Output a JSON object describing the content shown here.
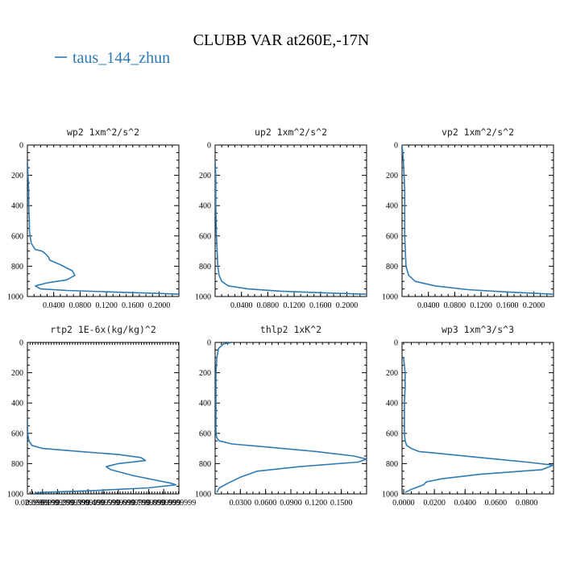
{
  "title": "CLUBB VAR at260E,-17N",
  "legend": {
    "label": "taus_144_zhun",
    "color": "#2e7bb4"
  },
  "colors": {
    "series": "#2e7bb4",
    "axes": "#000000"
  },
  "chart_data": [
    {
      "type": "line",
      "title": "wp2  1xm^2/s^2",
      "xlim": [
        0,
        0.23
      ],
      "ylim": [
        0,
        1000
      ],
      "xticks": [
        "0.0400",
        "0.0800",
        "0.1200",
        "0.1600",
        "0.2000"
      ],
      "xtick_values": [
        0.04,
        0.08,
        0.12,
        0.16,
        0.2
      ],
      "yticks": [
        "0",
        "200",
        "400",
        "600",
        "800",
        "1000"
      ],
      "ytick_values": [
        0,
        200,
        400,
        600,
        800,
        1000
      ],
      "series": [
        {
          "x": [
            0,
            0.001,
            0.002,
            0.002,
            0.003,
            0.003,
            0.004,
            0.006,
            0.012,
            0.022,
            0.028,
            0.032,
            0.034,
            0.05,
            0.068,
            0.072,
            0.06,
            0.03,
            0.012,
            0.02,
            0.06,
            0.13,
            0.2,
            0.23
          ],
          "y": [
            100,
            200,
            300,
            400,
            500,
            560,
            600,
            650,
            690,
            700,
            720,
            740,
            760,
            790,
            830,
            860,
            890,
            910,
            930,
            950,
            960,
            970,
            980,
            985
          ]
        }
      ]
    },
    {
      "type": "line",
      "title": "up2  1xm^2/s^2",
      "xlim": [
        0,
        0.23
      ],
      "ylim": [
        0,
        1000
      ],
      "xticks": [
        "0.0400",
        "0.0800",
        "0.1200",
        "0.1600",
        "0.2000"
      ],
      "xtick_values": [
        0.04,
        0.08,
        0.12,
        0.16,
        0.2
      ],
      "yticks": [
        "0",
        "200",
        "400",
        "600",
        "800",
        "1000"
      ],
      "ytick_values": [
        0,
        200,
        400,
        600,
        800,
        1000
      ],
      "series": [
        {
          "x": [
            0,
            0.001,
            0.001,
            0.002,
            0.003,
            0.004,
            0.006,
            0.01,
            0.02,
            0.05,
            0.1,
            0.16,
            0.23
          ],
          "y": [
            100,
            200,
            400,
            600,
            700,
            800,
            860,
            900,
            930,
            950,
            965,
            975,
            985
          ]
        }
      ]
    },
    {
      "type": "line",
      "title": "vp2  1xm^2/s^2",
      "xlim": [
        0,
        0.23
      ],
      "ylim": [
        0,
        1000
      ],
      "xticks": [
        "0.0400",
        "0.0800",
        "0.1200",
        "0.1600",
        "0.2000"
      ],
      "xtick_values": [
        0.04,
        0.08,
        0.12,
        0.16,
        0.2
      ],
      "yticks": [
        "0",
        "200",
        "400",
        "600",
        "800",
        "1000"
      ],
      "ytick_values": [
        0,
        200,
        400,
        600,
        800,
        1000
      ],
      "series": [
        {
          "x": [
            0,
            0.002,
            0.003,
            0.004,
            0.004,
            0.004,
            0.005,
            0.006,
            0.01,
            0.02,
            0.05,
            0.1,
            0.16,
            0.23
          ],
          "y": [
            0,
            100,
            200,
            300,
            400,
            600,
            700,
            800,
            860,
            900,
            930,
            955,
            970,
            985
          ]
        }
      ]
    },
    {
      "type": "line",
      "title": "rtp2  1E-6x(kg/kg)^2",
      "xlim": [
        0,
        1.0
      ],
      "ylim": [
        0,
        1000
      ],
      "xticks": [
        "0.0299999",
        "0.0999999",
        "0.1999999",
        "0.2999999",
        "0.3999999",
        "0.4999999",
        "0.5999999",
        "0.6999999",
        "0.7999999",
        "0.8999999",
        "0.9999999"
      ],
      "xtick_values": [
        0.03,
        0.1,
        0.2,
        0.3,
        0.4,
        0.5,
        0.6,
        0.7,
        0.8,
        0.9,
        1.0
      ],
      "yticks": [
        "0",
        "200",
        "400",
        "600",
        "800",
        "1000"
      ],
      "ytick_values": [
        0,
        200,
        400,
        600,
        800,
        1000
      ],
      "series": [
        {
          "x": [
            0,
            0.002,
            0.01,
            0.03,
            0.1,
            0.35,
            0.6,
            0.75,
            0.78,
            0.6,
            0.52,
            0.55,
            0.7,
            0.95,
            0.98,
            0.8,
            0.4,
            0.1,
            0.05
          ],
          "y": [
            500,
            600,
            650,
            680,
            700,
            720,
            740,
            760,
            780,
            800,
            820,
            840,
            880,
            930,
            940,
            960,
            980,
            990,
            995
          ]
        }
      ]
    },
    {
      "type": "line",
      "title": "thlp2  1xK^2",
      "xlim": [
        0,
        0.18
      ],
      "ylim": [
        0,
        1000
      ],
      "xticks": [
        "0.0300",
        "0.0600",
        "0.0900",
        "0.1200",
        "0.1500"
      ],
      "xtick_values": [
        0.03,
        0.06,
        0.09,
        0.12,
        0.15
      ],
      "yticks": [
        "0",
        "200",
        "400",
        "600",
        "800",
        "1000"
      ],
      "ytick_values": [
        0,
        200,
        400,
        600,
        800,
        1000
      ],
      "series": [
        {
          "x": [
            0.02,
            0.01,
            0.004,
            0.002,
            0.001,
            0.001,
            0.001,
            0.002,
            0.005,
            0.02,
            0.06,
            0.12,
            0.165,
            0.18,
            0.17,
            0.1,
            0.05,
            0.03,
            0.015,
            0.005,
            0.002
          ],
          "y": [
            0,
            10,
            40,
            100,
            200,
            400,
            600,
            630,
            650,
            670,
            690,
            720,
            750,
            770,
            790,
            820,
            850,
            890,
            930,
            960,
            990
          ]
        }
      ]
    },
    {
      "type": "line",
      "title": "wp3  1xm^3/s^3",
      "xlim": [
        -0.001,
        0.0975
      ],
      "ylim": [
        0,
        1000
      ],
      "xticks": [
        "0.0000",
        "0.0200",
        "0.0400",
        "0.0600",
        "0.0800"
      ],
      "xtick_values": [
        0,
        0.02,
        0.04,
        0.06,
        0.08
      ],
      "yticks": [
        "0",
        "200",
        "400",
        "600",
        "800",
        "1000"
      ],
      "ytick_values": [
        0,
        200,
        400,
        600,
        800,
        1000
      ],
      "series": [
        {
          "x": [
            0,
            0.001,
            0.001,
            0.0005,
            0.0005,
            0.001,
            0.002,
            0.005,
            0.01,
            0.02,
            0.05,
            0.08,
            0.0975,
            0.09,
            0.05,
            0.025,
            0.015,
            0.013,
            0.005,
            0.001
          ],
          "y": [
            100,
            200,
            300,
            400,
            600,
            650,
            680,
            700,
            720,
            730,
            760,
            790,
            810,
            840,
            870,
            900,
            920,
            940,
            970,
            990
          ]
        }
      ]
    }
  ]
}
